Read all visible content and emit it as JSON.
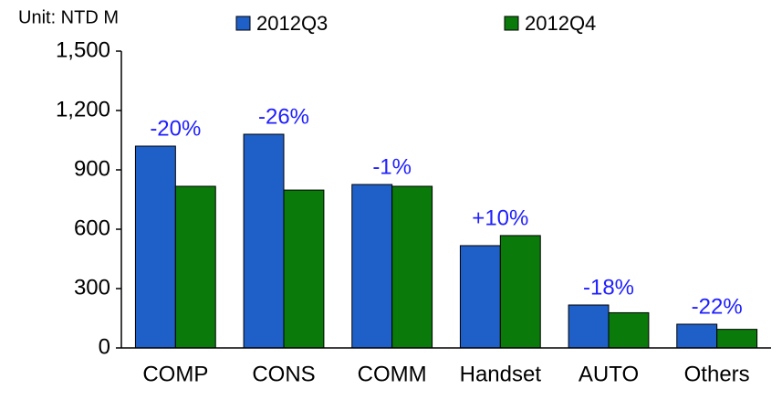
{
  "chart_data": {
    "type": "bar",
    "unit_label": "Unit: NTD M",
    "categories": [
      "COMP",
      "CONS",
      "COMM",
      "Handset",
      "AUTO",
      "Others"
    ],
    "series": [
      {
        "name": "2012Q3",
        "color": "#1f5fc8",
        "values": [
          1020,
          1080,
          826,
          517,
          217,
          120
        ]
      },
      {
        "name": "2012Q4",
        "color": "#0a7a0a",
        "values": [
          817,
          798,
          817,
          568,
          178,
          94
        ]
      }
    ],
    "annotations": [
      "-20%",
      "-26%",
      "-1%",
      "+10%",
      "-18%",
      "-22%"
    ],
    "ylim": [
      0,
      1500
    ],
    "yticks": [
      0,
      300,
      600,
      900,
      {
        "value": 1200,
        "label": "1,200"
      },
      {
        "value": 1500,
        "label": "1,500"
      }
    ],
    "grid": false
  }
}
